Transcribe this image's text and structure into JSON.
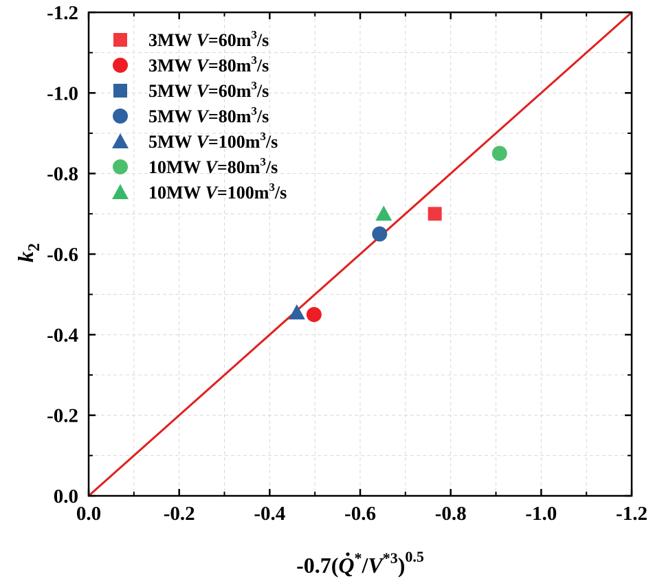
{
  "chart_data": {
    "type": "scatter",
    "xlabel": {
      "prefix": "-0.7(",
      "q": "Q",
      "q_sup": "*",
      "slash": "/",
      "v": "V",
      "v_sup": "*3",
      "close": ")",
      "exp": "0.5"
    },
    "ylabel": {
      "main": "k",
      "sub": "2"
    },
    "xlim": [
      0.0,
      -1.2
    ],
    "ylim": [
      0.0,
      -1.2
    ],
    "xticks": [
      0.0,
      -0.2,
      -0.4,
      -0.6,
      -0.8,
      -1.0,
      -1.2
    ],
    "yticks": [
      0.0,
      -0.2,
      -0.4,
      -0.6,
      -0.8,
      -1.0,
      -1.2
    ],
    "xtick_labels": [
      "0.0",
      "-0.2",
      "-0.4",
      "-0.6",
      "-0.8",
      "-1.0",
      "-1.2"
    ],
    "ytick_labels": [
      "0.0",
      "-0.2",
      "-0.4",
      "-0.6",
      "-0.8",
      "-1.0",
      "-1.2"
    ],
    "grid": true,
    "legend_position": "top-left",
    "reference_line": {
      "x": [
        0.0,
        -1.2
      ],
      "y": [
        0.0,
        -1.2
      ],
      "color": "#e02020"
    },
    "series": [
      {
        "name": "3MW V=60m3/s",
        "label": {
          "pre": "3MW ",
          "v": "V",
          "mid": "=60m",
          "sup": "3",
          "post": "/s"
        },
        "marker": "square",
        "color": "#f0383e",
        "x": [
          -0.765
        ],
        "y": [
          -0.7
        ]
      },
      {
        "name": "3MW V=80m3/s",
        "label": {
          "pre": "3MW ",
          "v": "V",
          "mid": "=80m",
          "sup": "3",
          "post": "/s"
        },
        "marker": "circle",
        "color": "#ee1c24",
        "x": [
          -0.498
        ],
        "y": [
          -0.45
        ]
      },
      {
        "name": "5MW V=60m3/s",
        "label": {
          "pre": "5MW ",
          "v": "V",
          "mid": "=60m",
          "sup": "3",
          "post": "/s"
        },
        "marker": "square",
        "color": "#2e62a0",
        "x": [],
        "y": []
      },
      {
        "name": "5MW V=80m3/s",
        "label": {
          "pre": "5MW ",
          "v": "V",
          "mid": "=80m",
          "sup": "3",
          "post": "/s"
        },
        "marker": "circle",
        "color": "#2e62a0",
        "x": [
          -0.643
        ],
        "y": [
          -0.65
        ]
      },
      {
        "name": "5MW V=100m3/s",
        "label": {
          "pre": "5MW ",
          "v": "V",
          "mid": "=100m",
          "sup": "3",
          "post": "/s"
        },
        "marker": "triangle",
        "color": "#2e62a0",
        "x": [
          -0.46
        ],
        "y": [
          -0.455
        ]
      },
      {
        "name": "10MW V=80m3/s",
        "label": {
          "pre": "10MW ",
          "v": "V",
          "mid": "=80m",
          "sup": "3",
          "post": "/s"
        },
        "marker": "circle",
        "color": "#4cbf6d",
        "x": [
          -0.908
        ],
        "y": [
          -0.85
        ]
      },
      {
        "name": "10MW V=100m3/s",
        "label": {
          "pre": "10MW ",
          "v": "V",
          "mid": "=100m",
          "sup": "3",
          "post": "/s"
        },
        "marker": "triangle",
        "color": "#3ab86a",
        "x": [
          -0.652
        ],
        "y": [
          -0.7
        ]
      }
    ]
  }
}
